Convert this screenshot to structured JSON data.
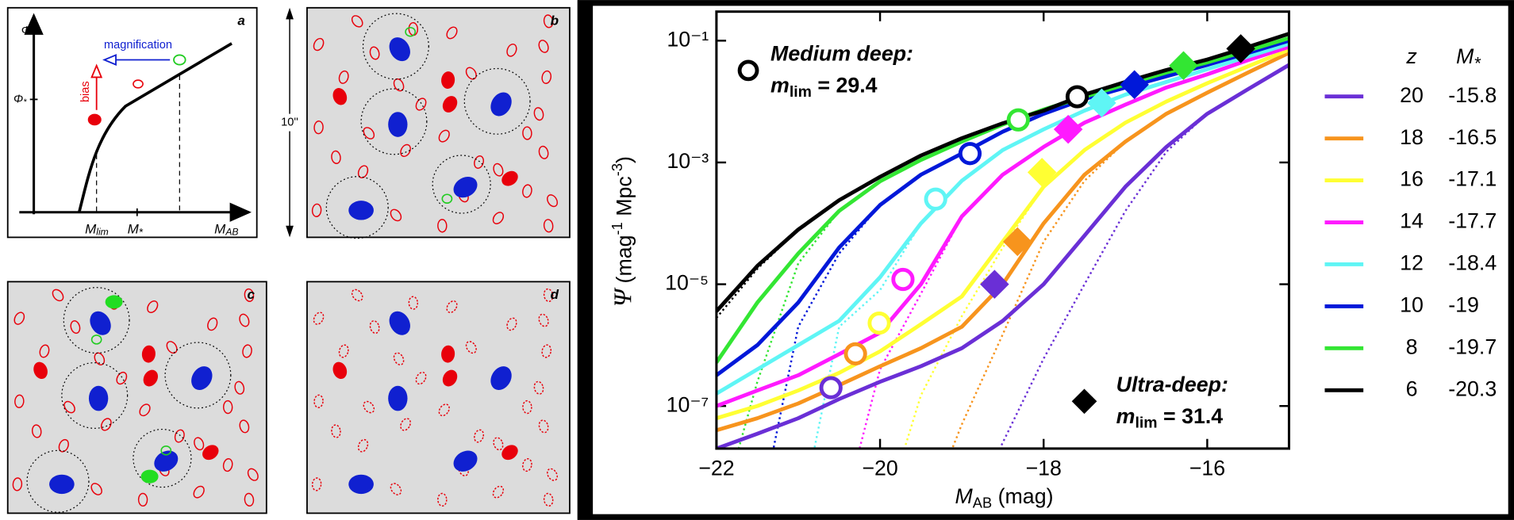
{
  "panels": {
    "a": {
      "label": "a",
      "phi": "Φ",
      "phi_star": [
        "Φ",
        "*"
      ],
      "m_lim": [
        "M",
        "lim"
      ],
      "m_star": [
        "M",
        "*"
      ],
      "m_ab": [
        "M",
        "AB"
      ],
      "magnification": "magnification",
      "bias": "bias"
    },
    "b": {
      "label": "b",
      "scale": "10''"
    },
    "c": {
      "label": "c"
    },
    "d": {
      "label": "d"
    }
  },
  "chart_data": {
    "type": "line",
    "xlabel": [
      "M",
      "AB",
      "  (mag)"
    ],
    "ylabel": [
      "Ψ",
      "  (mag",
      "-1",
      " Mpc",
      "-3",
      ")"
    ],
    "log_y": true,
    "xlim": [
      -22,
      -15
    ],
    "ylim": [
      2e-08,
      0.3
    ],
    "xticks": [
      {
        "value": -22,
        "label": "−22"
      },
      {
        "value": -20,
        "label": "−20"
      },
      {
        "value": -18,
        "label": "−18"
      },
      {
        "value": -16,
        "label": "−16"
      }
    ],
    "yticks": [
      {
        "value": 1e-07,
        "label": "10⁻⁷"
      },
      {
        "value": 1e-05,
        "label": "10⁻⁵"
      },
      {
        "value": 0.001,
        "label": "10⁻³"
      },
      {
        "value": 0.1,
        "label": "10⁻¹"
      }
    ],
    "legend_headers": [
      "z",
      [
        "M",
        "*"
      ]
    ],
    "medium_deep": {
      "title": "Medium deep:",
      "limit": [
        "m",
        "lim",
        " = 29.4"
      ]
    },
    "ultra_deep": {
      "title": "Ultra-deep:",
      "limit": [
        "m",
        "lim",
        " = 31.4"
      ]
    },
    "x": [
      -22,
      -21.5,
      -21,
      -20.5,
      -20,
      -19.5,
      -19,
      -18.5,
      -18,
      -17.5,
      -17,
      -16.5,
      -16,
      -15.5,
      -15
    ],
    "series": [
      {
        "name": "20",
        "m_star": -15.8,
        "color": "#6a2fd6",
        "values": [
          2e-08,
          3.5e-08,
          6.3e-08,
          1.3e-07,
          2.5e-07,
          4.5e-07,
          8.9e-07,
          2.5e-06,
          1e-05,
          6.3e-05,
          0.0004,
          0.0018,
          0.0063,
          0.016,
          0.04
        ],
        "dotted_values": [
          null,
          null,
          null,
          null,
          null,
          null,
          1e-09,
          2.5e-08,
          6e-07,
          1e-05,
          0.00016,
          0.0015,
          0.0063,
          null,
          null
        ],
        "medium_deep_point": [
          -20.6,
          2e-07
        ],
        "ultra_deep_point": [
          -18.6,
          1e-05
        ]
      },
      {
        "name": "18",
        "m_star": -16.5,
        "color": "#f7941d",
        "values": [
          4e-08,
          6.3e-08,
          1.1e-07,
          2.2e-07,
          4.5e-07,
          8.9e-07,
          2e-06,
          1e-05,
          0.0001,
          0.00063,
          0.0022,
          0.0063,
          0.014,
          0.03,
          0.063
        ],
        "dotted_values": [
          null,
          null,
          null,
          null,
          null,
          1e-09,
          5e-08,
          1.5e-06,
          5e-05,
          0.0005,
          0.0022,
          null,
          null,
          null,
          null
        ],
        "medium_deep_point": [
          -20.3,
          7.2e-07
        ],
        "ultra_deep_point": [
          -18.32,
          5e-05
        ]
      },
      {
        "name": "16",
        "m_star": -17.1,
        "color": "#ffff33",
        "values": [
          6.3e-08,
          1e-07,
          1.8e-07,
          3.5e-07,
          7.9e-07,
          2.2e-06,
          6.3e-06,
          5e-05,
          0.0004,
          0.0016,
          0.0045,
          0.01,
          0.02,
          0.038,
          0.071
        ],
        "dotted_values": [
          null,
          null,
          null,
          null,
          1e-09,
          1.5e-07,
          3e-06,
          4e-05,
          0.0004,
          null,
          null,
          null,
          null,
          null,
          null
        ],
        "medium_deep_point": [
          -20.01,
          2.3e-06
        ],
        "ultra_deep_point": [
          -18.02,
          0.00069
        ]
      },
      {
        "name": "14",
        "m_star": -17.7,
        "color": "#ff1aff",
        "values": [
          1e-07,
          1.8e-07,
          3.2e-07,
          7.1e-07,
          1.6e-06,
          1e-05,
          0.00013,
          0.00063,
          0.0018,
          0.0045,
          0.0089,
          0.017,
          0.028,
          0.048,
          0.079
        ],
        "dotted_values": [
          null,
          null,
          null,
          1e-09,
          4e-07,
          7e-06,
          0.00013,
          null,
          null,
          null,
          null,
          null,
          null,
          null,
          null
        ],
        "medium_deep_point": [
          -19.72,
          1.2e-05
        ],
        "ultra_deep_point": [
          -17.7,
          0.0035
        ]
      },
      {
        "name": "12",
        "m_star": -18.4,
        "color": "#5ff5f5",
        "values": [
          1.6e-07,
          4e-07,
          1e-06,
          2.5e-06,
          1.3e-05,
          0.0001,
          0.0005,
          0.0016,
          0.0035,
          0.0071,
          0.013,
          0.021,
          0.034,
          0.055,
          0.089
        ],
        "dotted_values": [
          null,
          null,
          1e-09,
          2e-06,
          8e-06,
          0.0001,
          null,
          null,
          null,
          null,
          null,
          null,
          null,
          null,
          null
        ],
        "medium_deep_point": [
          -19.32,
          0.00025
        ],
        "ultra_deep_point": [
          -17.29,
          0.0095
        ]
      },
      {
        "name": "10",
        "m_star": -19.0,
        "color": "#0018d9",
        "values": [
          3.2e-07,
          1e-06,
          5e-06,
          4e-05,
          0.0002,
          0.00063,
          0.0014,
          0.0032,
          0.0063,
          0.011,
          0.017,
          0.026,
          0.04,
          0.063,
          0.1
        ],
        "dotted_values": [
          null,
          1e-09,
          2e-06,
          3.2e-05,
          0.0002,
          null,
          null,
          null,
          null,
          null,
          null,
          null,
          null,
          null,
          null
        ],
        "medium_deep_point": [
          -18.9,
          0.0014
        ],
        "ultra_deep_point": [
          -16.89,
          0.019
        ]
      },
      {
        "name": "8",
        "m_star": -19.7,
        "color": "#33e633",
        "values": [
          5.2e-07,
          5e-06,
          3.2e-05,
          0.00016,
          0.00049,
          0.0011,
          0.0022,
          0.0042,
          0.0074,
          0.012,
          0.019,
          0.03,
          0.044,
          0.069,
          0.11
        ],
        "dotted_values": [
          1e-09,
          2.5e-07,
          2.2e-05,
          0.00016,
          null,
          null,
          null,
          null,
          null,
          null,
          null,
          null,
          null,
          null,
          null
        ],
        "medium_deep_point": [
          -18.31,
          0.005
        ],
        "ultra_deep_point": [
          -16.29,
          0.039
        ]
      },
      {
        "name": "6",
        "m_star": -20.3,
        "color": "#000000",
        "values": [
          3.6e-06,
          2e-05,
          7.9e-05,
          0.00024,
          0.00058,
          0.0013,
          0.0025,
          0.0044,
          0.0071,
          0.013,
          0.021,
          0.033,
          0.049,
          0.079,
          0.13
        ],
        "dotted_values": [
          2.8e-06,
          1.8e-05,
          7.9e-05,
          null,
          null,
          null,
          null,
          null,
          null,
          null,
          null,
          null,
          null,
          null,
          null
        ],
        "medium_deep_point": [
          -17.59,
          0.012
        ],
        "ultra_deep_point": [
          -15.59,
          0.074
        ]
      }
    ]
  }
}
